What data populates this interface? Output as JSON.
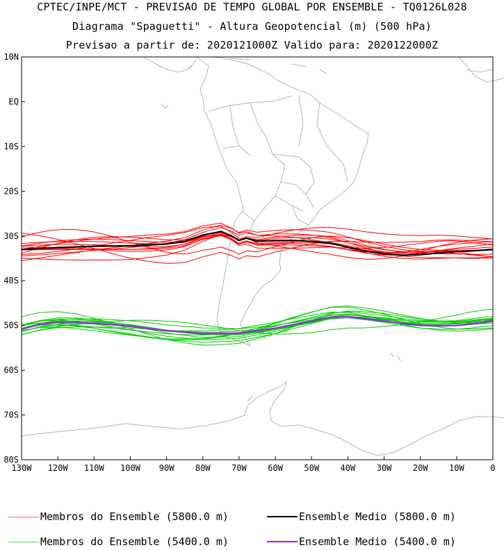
{
  "title": {
    "line1": "CPTEC/INPE/MCT - PREVISAO DE TEMPO GLOBAL POR ENSEMBLE - TQ0126L028",
    "line2": "Diagrama \"Spaguetti\" - Altura Geopotencial (m) (500 hPa)",
    "line3": "Previsao a partir de: 2020121000Z  Valido para: 2020122000Z"
  },
  "map": {
    "lon_range": [
      -130,
      0
    ],
    "lat_range": [
      -80,
      10
    ],
    "lat_labels": [
      "10N",
      "EQ",
      "10S",
      "20S",
      "30S",
      "40S",
      "50S",
      "60S",
      "70S",
      "80S"
    ],
    "lon_labels": [
      "130W",
      "120W",
      "110W",
      "100W",
      "90W",
      "80W",
      "70W",
      "60W",
      "50W",
      "40W",
      "30W",
      "20W",
      "10W",
      "0"
    ],
    "grid": false
  },
  "chart_data": {
    "type": "line",
    "xlabel": "",
    "ylabel": "",
    "series": [
      {
        "name": "Ensemble Medio (5800.0 m)",
        "color": "#000000",
        "lon": [
          -130,
          -120,
          -110,
          -100,
          -90,
          -85,
          -80,
          -75,
          -72,
          -70,
          -68,
          -65,
          -60,
          -55,
          -50,
          -45,
          -40,
          -35,
          -30,
          -25,
          -20,
          -15,
          -10,
          -5,
          0
        ],
        "lat": [
          -33.0,
          -32.6,
          -32.3,
          -32.2,
          -31.8,
          -31.2,
          -29.8,
          -29.0,
          -30.0,
          -31.0,
          -30.5,
          -31.2,
          -31.0,
          -31.0,
          -31.2,
          -31.6,
          -32.5,
          -33.4,
          -34.0,
          -34.3,
          -34.2,
          -33.8,
          -33.5,
          -33.3,
          -33.0
        ]
      },
      {
        "name": "Ensemble Medio (5400.0 m)",
        "color": "#a020f0",
        "lon": [
          -130,
          -125,
          -120,
          -115,
          -110,
          -100,
          -90,
          -80,
          -70,
          -60,
          -50,
          -45,
          -40,
          -35,
          -30,
          -25,
          -20,
          -15,
          -10,
          -5,
          0
        ],
        "lat": [
          -50.8,
          -49.8,
          -49.3,
          -49.3,
          -49.5,
          -50.2,
          -51.2,
          -51.8,
          -51.7,
          -50.6,
          -49.0,
          -48.2,
          -48.0,
          -48.5,
          -49.0,
          -49.6,
          -50.0,
          -50.1,
          -50.0,
          -49.5,
          -49.0
        ]
      },
      {
        "name": "Membros do Ensemble (5800.0 m)",
        "color": "#ff0000",
        "members_offsets": [
          2.5,
          -2.0,
          1.5,
          -4.0,
          3.5,
          -1.0,
          0.8,
          -3.0,
          4.5,
          -5.0,
          2.0,
          -2.5,
          1.0,
          -1.5
        ]
      },
      {
        "name": "Membros do Ensemble (5400.0 m)",
        "color": "#00cc00",
        "members_offsets": [
          1.5,
          -1.8,
          2.2,
          -1.0,
          0.8,
          -2.4,
          2.8,
          -0.6,
          1.2,
          -1.4,
          0.4,
          -2.8,
          2.0,
          -0.8
        ]
      }
    ]
  },
  "legend": [
    {
      "label": "Membros do Ensemble (5800.0 m)",
      "color": "#ff0000",
      "thin": true
    },
    {
      "label": "Ensemble Medio (5800.0 m)",
      "color": "#000000",
      "thin": false
    },
    {
      "label": "Membros do Ensemble (5400.0 m)",
      "color": "#00cc00",
      "thin": true
    },
    {
      "label": "Ensemble Medio (5400.0 m)",
      "color": "#a020f0",
      "thin": false
    }
  ]
}
